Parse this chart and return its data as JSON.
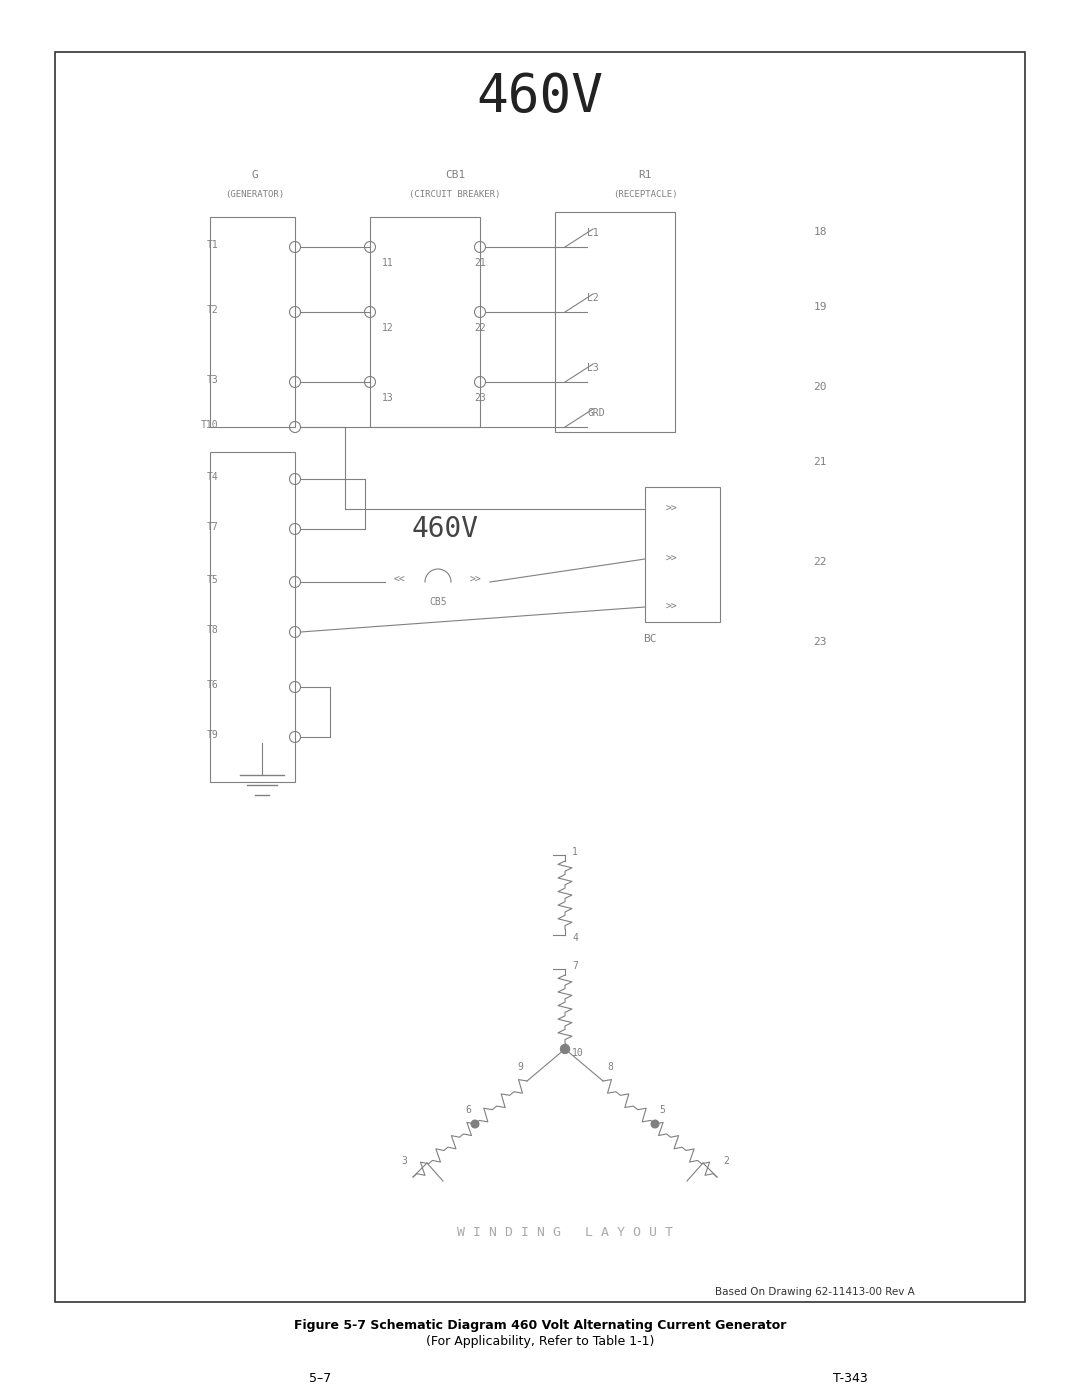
{
  "title_460v_top": "460V",
  "title_460v_mid": "460V",
  "winding_layout_text": "W I N D I N G   L A Y O U T",
  "based_on": "Based On Drawing 62-11413-00 Rev A",
  "caption_bold": "Figure 5-7 Schematic Diagram 460 Volt Alternating Current Generator",
  "caption_normal": "(For Applicability, Refer to Table 1-1)",
  "page_left": "5–7",
  "page_right": "T-343",
  "bg_color": "#ffffff",
  "line_color": "#808080",
  "text_color": "#808080",
  "border_color": "#333333",
  "row_numbers": [
    "18",
    "19",
    "20",
    "21",
    "22",
    "23"
  ],
  "G_label": "G",
  "G_sub": "(GENERATOR)",
  "CB1_label": "CB1",
  "CB1_sub": "(CIRCUIT BREAKER)",
  "R1_label": "R1",
  "R1_sub": "(RECEPTACLE)"
}
